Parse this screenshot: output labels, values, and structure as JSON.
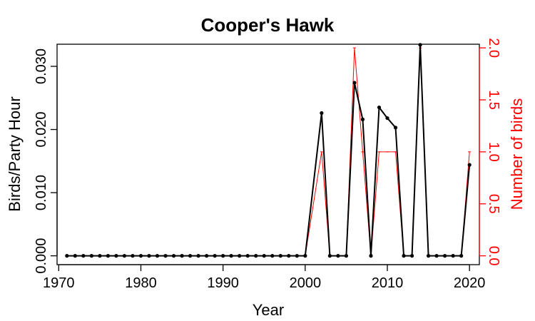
{
  "chart_data": {
    "type": "line",
    "title": "Cooper's Hawk",
    "xlabel": "Year",
    "ylabel": "Birds/Party Hour",
    "y2label": "Number of birds",
    "xlim": [
      1969.8,
      2021.2
    ],
    "ylim": [
      -0.0014,
      0.0335
    ],
    "y2lim": [
      -0.085,
      2.035
    ],
    "x_ticks": [
      1970,
      1980,
      1990,
      2000,
      2010,
      2020
    ],
    "y_ticks": [
      0.0,
      0.01,
      0.02,
      0.03
    ],
    "y_tick_labels": [
      "0.000",
      "0.010",
      "0.020",
      "0.030"
    ],
    "y2_ticks": [
      0.0,
      0.5,
      1.0,
      1.5,
      2.0
    ],
    "y2_tick_labels": [
      "0.0",
      "0.5",
      "1.0",
      "1.5",
      "2.0"
    ],
    "grid": false,
    "colors": {
      "primary": "#000000",
      "secondary": "#ff0000"
    },
    "series": [
      {
        "axis": "left",
        "color": "#000000",
        "points": [
          [
            1971,
            0
          ],
          [
            1972,
            0
          ],
          [
            1973,
            0
          ],
          [
            1974,
            0
          ],
          [
            1975,
            0
          ],
          [
            1976,
            0
          ],
          [
            1977,
            0
          ],
          [
            1978,
            0
          ],
          [
            1979,
            0
          ],
          [
            1980,
            0
          ],
          [
            1981,
            0
          ],
          [
            1982,
            0
          ],
          [
            1983,
            0
          ],
          [
            1984,
            0
          ],
          [
            1985,
            0
          ],
          [
            1986,
            0
          ],
          [
            1987,
            0
          ],
          [
            1988,
            0
          ],
          [
            1989,
            0
          ],
          [
            1990,
            0
          ],
          [
            1991,
            0
          ],
          [
            1992,
            0
          ],
          [
            1993,
            0
          ],
          [
            1994,
            0
          ],
          [
            1995,
            0
          ],
          [
            1996,
            0
          ],
          [
            1997,
            0
          ],
          [
            1998,
            0
          ],
          [
            1999,
            0
          ],
          [
            2000,
            0
          ],
          [
            2002,
            0.0226
          ],
          [
            2003,
            0
          ],
          [
            2004,
            0
          ],
          [
            2005,
            0
          ],
          [
            2006,
            0.0274
          ],
          [
            2007,
            0.0216
          ],
          [
            2008,
            0
          ],
          [
            2009,
            0.0235
          ],
          [
            2010,
            0.0218
          ],
          [
            2011,
            0.0203
          ],
          [
            2012,
            0
          ],
          [
            2013,
            0
          ],
          [
            2014,
            0.0334
          ],
          [
            2015,
            0
          ],
          [
            2016,
            0
          ],
          [
            2017,
            0
          ],
          [
            2018,
            0
          ],
          [
            2019,
            0
          ],
          [
            2020,
            0.0144
          ]
        ]
      },
      {
        "axis": "right",
        "color": "#ff0000",
        "points": [
          [
            1971,
            0
          ],
          [
            1972,
            0
          ],
          [
            1973,
            0
          ],
          [
            1974,
            0
          ],
          [
            1975,
            0
          ],
          [
            1976,
            0
          ],
          [
            1977,
            0
          ],
          [
            1978,
            0
          ],
          [
            1979,
            0
          ],
          [
            1980,
            0
          ],
          [
            1981,
            0
          ],
          [
            1982,
            0
          ],
          [
            1983,
            0
          ],
          [
            1984,
            0
          ],
          [
            1985,
            0
          ],
          [
            1986,
            0
          ],
          [
            1987,
            0
          ],
          [
            1988,
            0
          ],
          [
            1989,
            0
          ],
          [
            1990,
            0
          ],
          [
            1991,
            0
          ],
          [
            1992,
            0
          ],
          [
            1993,
            0
          ],
          [
            1994,
            0
          ],
          [
            1995,
            0
          ],
          [
            1996,
            0
          ],
          [
            1997,
            0
          ],
          [
            1998,
            0
          ],
          [
            1999,
            0
          ],
          [
            2000,
            0
          ],
          [
            2002,
            1
          ],
          [
            2003,
            0
          ],
          [
            2004,
            0
          ],
          [
            2005,
            0
          ],
          [
            2006,
            2
          ],
          [
            2007,
            1
          ],
          [
            2008,
            0
          ],
          [
            2009,
            1
          ],
          [
            2010,
            1
          ],
          [
            2011,
            1
          ],
          [
            2012,
            0
          ],
          [
            2013,
            0
          ],
          [
            2014,
            2
          ],
          [
            2015,
            0
          ],
          [
            2016,
            0
          ],
          [
            2017,
            0
          ],
          [
            2018,
            0
          ],
          [
            2019,
            0
          ],
          [
            2020,
            1
          ]
        ]
      }
    ]
  }
}
